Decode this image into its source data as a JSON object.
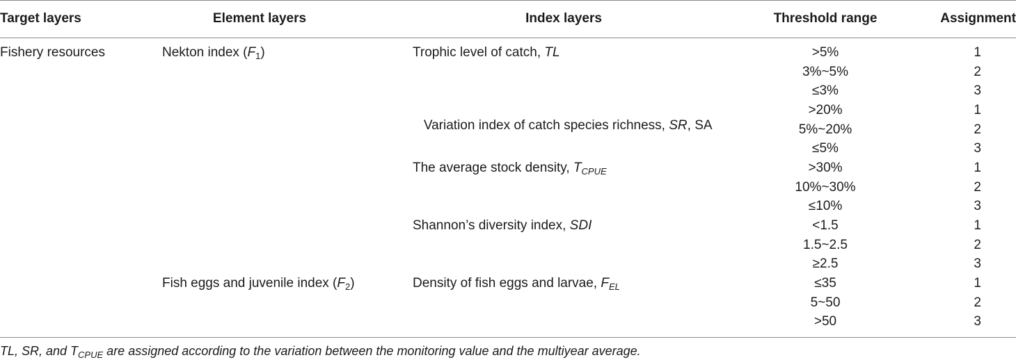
{
  "headers": {
    "target": "Target layers",
    "element": "Element layers",
    "index": "Index layers",
    "threshold": "Threshold range",
    "assignment": "Assignment"
  },
  "target_layer": "Fishery resources",
  "elements": [
    {
      "label": "Nekton index (",
      "symbol": "F",
      "sub": "1",
      "close": ")"
    },
    {
      "label": "Fish eggs and juvenile index (",
      "symbol": "F",
      "sub": "2",
      "close": ")"
    }
  ],
  "indices": [
    {
      "label": "Trophic level of catch, ",
      "symbol": "TL",
      "sub": "",
      "extra": ""
    },
    {
      "label": " Variation index of catch species richness, ",
      "symbol": "SR",
      "sub": "",
      "extra": ", SA"
    },
    {
      "label": "The average stock density, ",
      "symbol": "T",
      "sub": "CPUE",
      "extra": ""
    },
    {
      "label": "Shannon’s diversity index, ",
      "symbol": "SDI",
      "sub": "",
      "extra": ""
    },
    {
      "label": "Density of fish eggs and larvae, ",
      "symbol": "F",
      "sub": "EL",
      "extra": ""
    }
  ],
  "rows": [
    {
      "threshold": ">5%",
      "assignment": "1"
    },
    {
      "threshold": "3%~5%",
      "assignment": "2"
    },
    {
      "threshold": "≤3%",
      "assignment": "3"
    },
    {
      "threshold": ">20%",
      "assignment": "1"
    },
    {
      "threshold": "5%~20%",
      "assignment": "2"
    },
    {
      "threshold": "≤5%",
      "assignment": "3"
    },
    {
      "threshold": ">30%",
      "assignment": "1"
    },
    {
      "threshold": "10%~30%",
      "assignment": "2"
    },
    {
      "threshold": "≤10%",
      "assignment": "3"
    },
    {
      "threshold": "<1.5",
      "assignment": "1"
    },
    {
      "threshold": "1.5~2.5",
      "assignment": "2"
    },
    {
      "threshold": "≥2.5",
      "assignment": "3"
    },
    {
      "threshold": "≤35",
      "assignment": "1"
    },
    {
      "threshold": "5~50",
      "assignment": "2"
    },
    {
      "threshold": ">50",
      "assignment": "3"
    }
  ],
  "footnote": {
    "pre": "TL, SR, and T",
    "sub": "CPUE",
    "post": " are assigned according to the variation between the monitoring value and the multiyear average."
  }
}
